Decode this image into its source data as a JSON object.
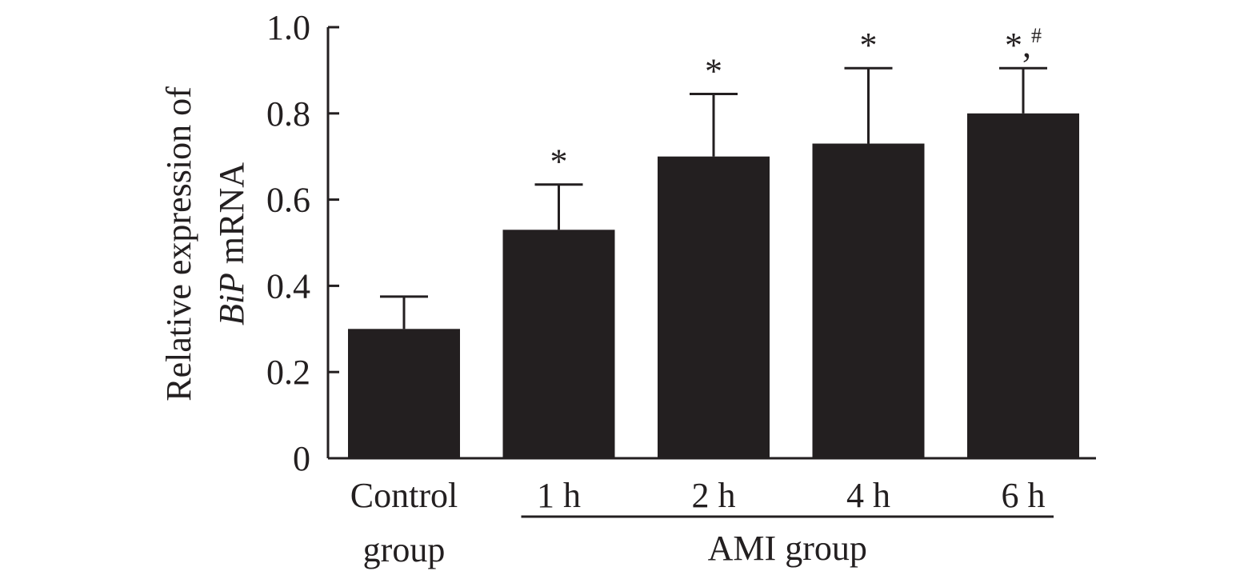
{
  "chart_data": {
    "type": "bar",
    "categories": [
      "Control\ngroup",
      "1 h",
      "2 h",
      "4 h",
      "6 h"
    ],
    "values": [
      0.3,
      0.53,
      0.7,
      0.73,
      0.8
    ],
    "error": [
      0.075,
      0.105,
      0.145,
      0.175,
      0.105
    ],
    "significance": [
      "",
      "*",
      "*",
      "*",
      "*,#"
    ],
    "ylabel_line1": "Relative expression of",
    "ylabel_italic": "BiP",
    "ylabel_rest": " mRNA",
    "yticks": [
      0,
      0.2,
      0.4,
      0.6,
      0.8,
      1.0
    ],
    "ytick_labels": [
      "0",
      "0.2",
      "0.4",
      "0.6",
      "0.8",
      "1.0"
    ],
    "ylim": [
      0,
      1.0
    ],
    "group_label": "AMI group",
    "group_categories": [
      1,
      4
    ],
    "bar_color": "#231f20",
    "grid": false,
    "legend": "none"
  }
}
